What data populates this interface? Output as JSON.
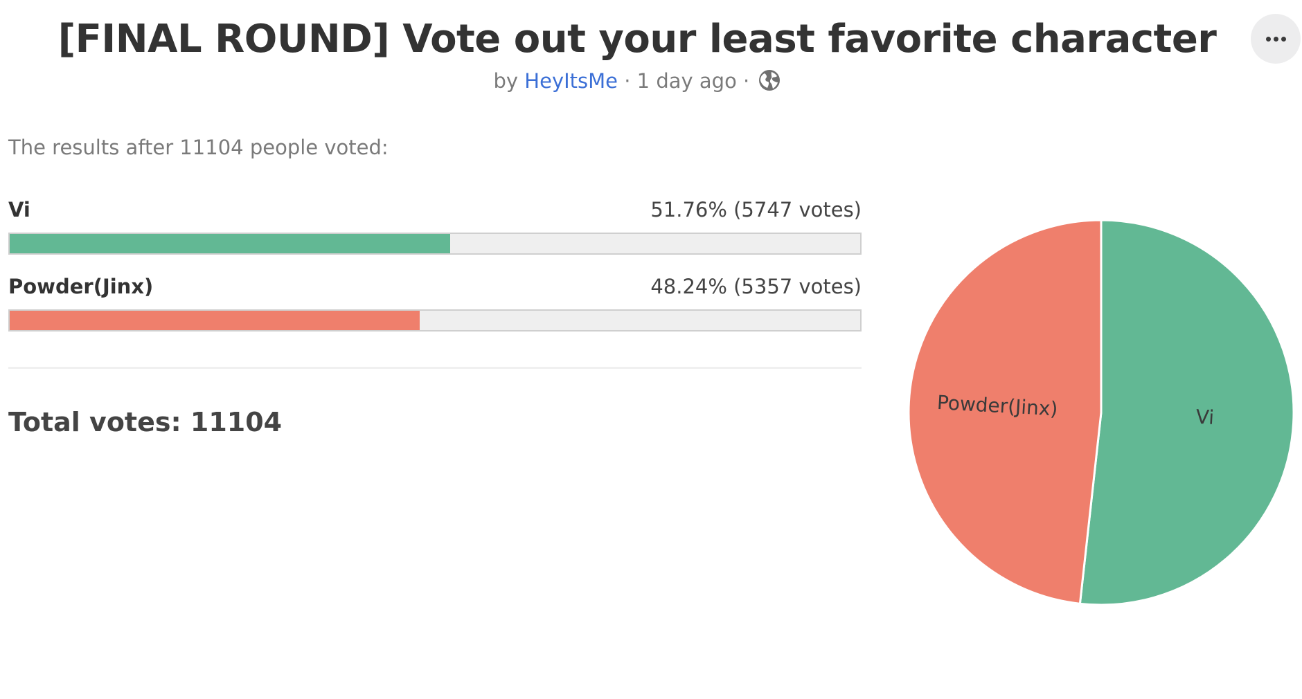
{
  "poll": {
    "title": "[FINAL ROUND] Vote out your least favorite character",
    "by": "by",
    "author": "HeyItsMe",
    "separator": "·",
    "age": "1 day ago",
    "visibility_icon": "globe-icon",
    "menu_icon": "more-dots-icon",
    "results_intro": "The results after 11104 people voted:",
    "total_votes_text": "Total votes: 11104"
  },
  "options": [
    {
      "name": "Vi",
      "percent_text": "51.76% (5747 votes)",
      "fraction": 0.5176,
      "color": "#62b894"
    },
    {
      "name": "Powder(Jinx)",
      "percent_text": "48.24% (5357 votes)",
      "fraction": 0.4824,
      "color": "#ef7f6c"
    }
  ],
  "chart_data": {
    "type": "pie",
    "categories": [
      "Vi",
      "Powder(Jinx)"
    ],
    "values": [
      5747,
      5357
    ],
    "colors": [
      "#62b894",
      "#ef7f6c"
    ],
    "title": ""
  }
}
